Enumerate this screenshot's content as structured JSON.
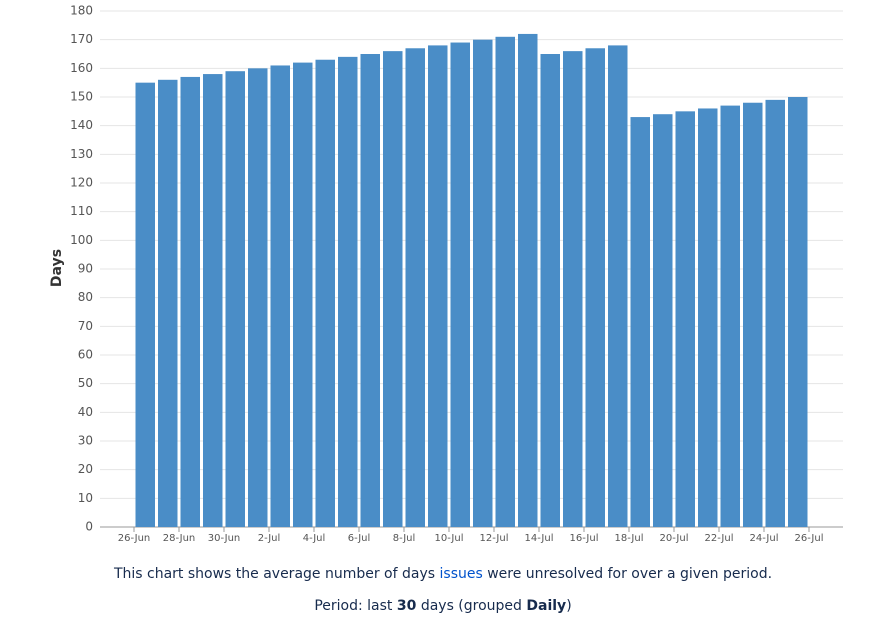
{
  "chart_data": {
    "type": "bar",
    "y_label": "Days",
    "color": "#4a8dc7",
    "grid": true,
    "ylim": [
      0,
      180
    ],
    "yticks": [
      0,
      10,
      20,
      30,
      40,
      50,
      60,
      70,
      80,
      90,
      100,
      110,
      120,
      130,
      140,
      150,
      160,
      170,
      180
    ],
    "xlim": [
      0,
      30
    ],
    "xticks": [
      {
        "value": 0,
        "label": "26-Jun"
      },
      {
        "value": 2,
        "label": "28-Jun"
      },
      {
        "value": 4,
        "label": "30-Jun"
      },
      {
        "value": 6,
        "label": "2-Jul"
      },
      {
        "value": 8,
        "label": "4-Jul"
      },
      {
        "value": 10,
        "label": "6-Jul"
      },
      {
        "value": 12,
        "label": "8-Jul"
      },
      {
        "value": 14,
        "label": "10-Jul"
      },
      {
        "value": 16,
        "label": "12-Jul"
      },
      {
        "value": 18,
        "label": "14-Jul"
      },
      {
        "value": 20,
        "label": "16-Jul"
      },
      {
        "value": 22,
        "label": "18-Jul"
      },
      {
        "value": 24,
        "label": "20-Jul"
      },
      {
        "value": 26,
        "label": "22-Jul"
      },
      {
        "value": 28,
        "label": "24-Jul"
      },
      {
        "value": 30,
        "label": "26-Jul"
      }
    ],
    "x": [
      0,
      1,
      2,
      3,
      4,
      5,
      6,
      7,
      8,
      9,
      10,
      11,
      12,
      13,
      14,
      15,
      16,
      17,
      18,
      19,
      20,
      21,
      22,
      23,
      24,
      25,
      26,
      27,
      28,
      29
    ],
    "values": [
      155,
      156,
      157,
      158,
      159,
      160,
      161,
      162,
      163,
      164,
      165,
      166,
      167,
      168,
      169,
      170,
      171,
      172,
      165,
      166,
      167,
      168,
      143,
      144,
      145,
      146,
      147,
      148,
      149,
      150
    ]
  },
  "caption": {
    "before": "This chart shows the average number of days",
    "link": "issues",
    "after": "were unresolved for over a given period."
  },
  "period": {
    "prefix": "Period: last",
    "count": "30",
    "middle": "days (grouped",
    "grouping": "Daily",
    "suffix": ")"
  }
}
